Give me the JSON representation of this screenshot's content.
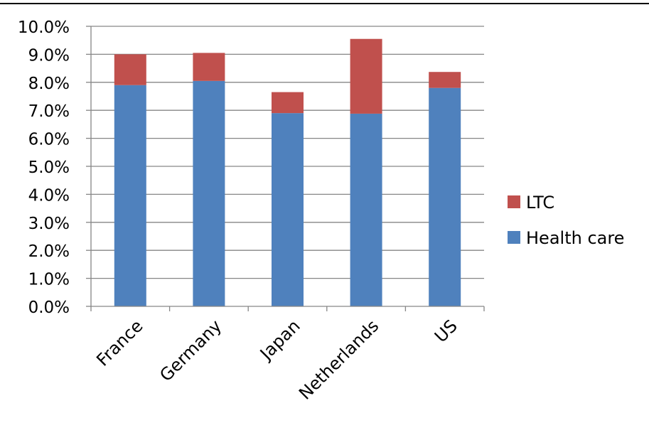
{
  "chart_data": {
    "type": "bar",
    "stacked": true,
    "title": "",
    "xlabel": "",
    "ylabel": "",
    "categories": [
      "France",
      "Germany",
      "Japan",
      "Netherlands",
      "US"
    ],
    "series": [
      {
        "name": "Health care",
        "color": "#4F81BD",
        "values": [
          7.9,
          8.05,
          6.9,
          6.88,
          7.8
        ]
      },
      {
        "name": "LTC",
        "color": "#C0504D",
        "values": [
          1.1,
          1.0,
          0.75,
          2.67,
          0.57
        ]
      }
    ],
    "ylim": [
      0,
      10
    ],
    "ytick_step": 1,
    "y_tick_labels": [
      "0.0%",
      "1.0%",
      "2.0%",
      "3.0%",
      "4.0%",
      "5.0%",
      "6.0%",
      "7.0%",
      "8.0%",
      "9.0%",
      "10.0%"
    ],
    "grid": true,
    "legend_position": "right",
    "legend_entries": [
      "LTC",
      "Health care"
    ]
  }
}
